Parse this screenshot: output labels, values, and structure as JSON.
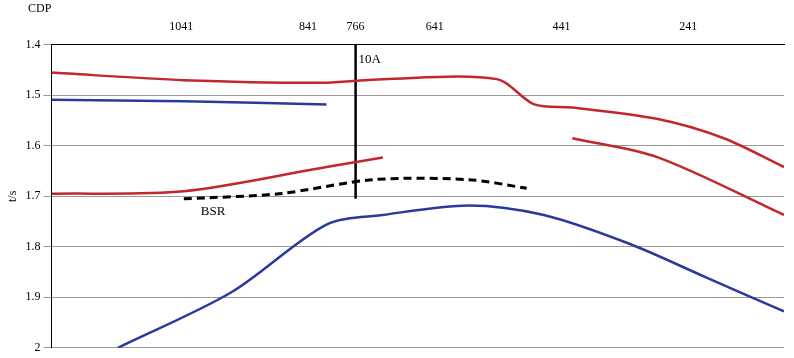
{
  "chart_data": {
    "type": "line",
    "x_label": "CDP",
    "y_label": "t/s",
    "xlim": [
      1246,
      90
    ],
    "xticks": [
      1041,
      841,
      766,
      641,
      441,
      241
    ],
    "ylim": [
      2.0,
      1.4
    ],
    "yticks": [
      1.4,
      1.5,
      1.6,
      1.7,
      1.8,
      1.9,
      2.0
    ],
    "grid": true,
    "series": [
      {
        "color": "#c0282d",
        "line_style": "solid",
        "x": [
          1246,
          1037,
          812,
          723,
          543,
          484,
          424,
          289,
          185,
          90
        ],
        "values": [
          1.455,
          1.47,
          1.475,
          1.468,
          1.468,
          1.518,
          1.524,
          1.547,
          1.585,
          1.642
        ]
      },
      {
        "color": "#2b3a9a",
        "line_style": "solid",
        "x": [
          1141,
          962,
          812,
          723,
          588,
          469,
          334,
          214,
          90
        ],
        "values": [
          2.0,
          1.89,
          1.756,
          1.737,
          1.718,
          1.737,
          1.794,
          1.86,
          1.928
        ]
      },
      {
        "color": "#2b3a9a",
        "line_style": "solid",
        "x": [
          1246,
          1037,
          812
        ],
        "values": [
          1.509,
          1.512,
          1.518
        ]
      },
      {
        "color": "#c0282d",
        "line_style": "solid",
        "x": [
          1246,
          1037,
          812,
          723
        ],
        "values": [
          1.695,
          1.69,
          1.642,
          1.623
        ]
      },
      {
        "color": "#c0282d",
        "line_style": "solid",
        "x": [
          424,
          289,
          90
        ],
        "values": [
          1.585,
          1.623,
          1.737
        ]
      },
      {
        "color": "#000000",
        "line_style": "dashed",
        "x": [
          1037,
          887,
          738,
          588,
          496
        ],
        "values": [
          1.705,
          1.695,
          1.667,
          1.667,
          1.684
        ]
      },
      {
        "color": "#000000",
        "line_style": "solid",
        "x": [
          766,
          766
        ],
        "values": [
          1.4,
          1.705
        ]
      }
    ],
    "annotations": [
      {
        "text": "10A",
        "x": 766,
        "y": 1.43
      },
      {
        "text": "BSR",
        "x": 1015,
        "y": 1.73
      }
    ]
  }
}
